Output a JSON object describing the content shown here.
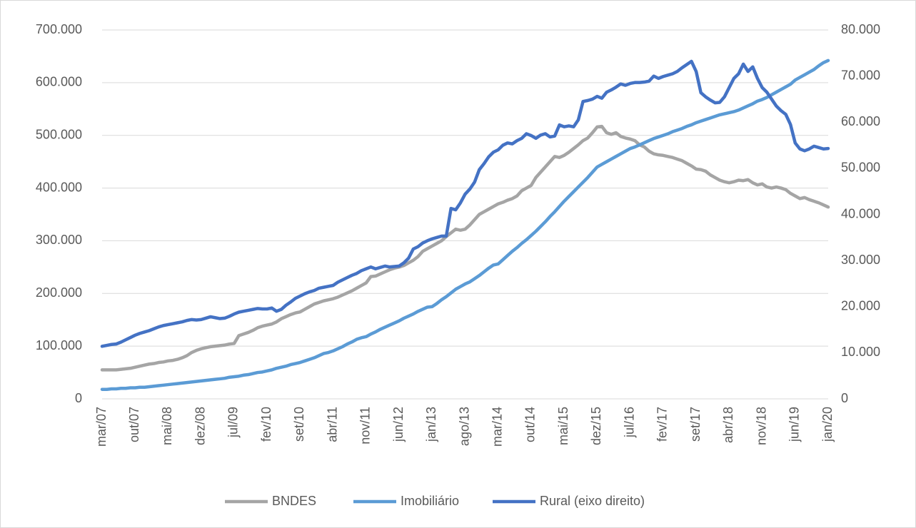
{
  "chart_data": {
    "type": "line",
    "categories": [
      "mar/07",
      null,
      null,
      null,
      null,
      null,
      null,
      "out/07",
      null,
      null,
      null,
      null,
      null,
      null,
      "mai/08",
      null,
      null,
      null,
      null,
      null,
      null,
      "dez/08",
      null,
      null,
      null,
      null,
      null,
      null,
      "jul/09",
      null,
      null,
      null,
      null,
      null,
      null,
      "fev/10",
      null,
      null,
      null,
      null,
      null,
      null,
      "set/10",
      null,
      null,
      null,
      null,
      null,
      null,
      "abr/11",
      null,
      null,
      null,
      null,
      null,
      null,
      "nov/11",
      null,
      null,
      null,
      null,
      null,
      null,
      "jun/12",
      null,
      null,
      null,
      null,
      null,
      null,
      "jan/13",
      null,
      null,
      null,
      null,
      null,
      null,
      "ago/13",
      null,
      null,
      null,
      null,
      null,
      null,
      "mar/14",
      null,
      null,
      null,
      null,
      null,
      null,
      "out/14",
      null,
      null,
      null,
      null,
      null,
      null,
      "mai/15",
      null,
      null,
      null,
      null,
      null,
      null,
      "dez/15",
      null,
      null,
      null,
      null,
      null,
      null,
      "jul/16",
      null,
      null,
      null,
      null,
      null,
      null,
      "fev/17",
      null,
      null,
      null,
      null,
      null,
      null,
      "set/17",
      null,
      null,
      null,
      null,
      null,
      null,
      "abr/18",
      null,
      null,
      null,
      null,
      null,
      null,
      "nov/18",
      null,
      null,
      null,
      null,
      null,
      null,
      "jun/19",
      null,
      null,
      null,
      null,
      null,
      null,
      "jan/20"
    ],
    "series": [
      {
        "name": "BNDES",
        "color": "#a5a5a5",
        "values": [
          55000,
          55000,
          55000,
          55000,
          56000,
          57000,
          58000,
          60000,
          62000,
          64000,
          66000,
          67000,
          69000,
          70000,
          72000,
          73000,
          75000,
          78000,
          82000,
          88000,
          92000,
          95000,
          97000,
          99000,
          100000,
          101000,
          102000,
          104000,
          105000,
          120000,
          123000,
          126000,
          130000,
          135000,
          138000,
          140000,
          142000,
          146000,
          152000,
          156000,
          160000,
          163000,
          165000,
          170000,
          175000,
          180000,
          183000,
          186000,
          188000,
          190000,
          193000,
          197000,
          201000,
          205000,
          210000,
          215000,
          220000,
          232000,
          233000,
          237000,
          241000,
          245000,
          248000,
          250000,
          253000,
          258000,
          263000,
          270000,
          280000,
          285000,
          290000,
          295000,
          300000,
          308000,
          315000,
          322000,
          320000,
          322000,
          330000,
          340000,
          350000,
          355000,
          360000,
          365000,
          370000,
          373000,
          377000,
          380000,
          385000,
          395000,
          400000,
          405000,
          420000,
          430000,
          440000,
          450000,
          460000,
          458000,
          462000,
          468000,
          475000,
          482000,
          490000,
          495000,
          505000,
          516000,
          517000,
          505000,
          502000,
          505000,
          498000,
          495000,
          493000,
          490000,
          482000,
          478000,
          470000,
          465000,
          463000,
          462000,
          460000,
          458000,
          455000,
          452000,
          447000,
          442000,
          436000,
          435000,
          432000,
          425000,
          420000,
          415000,
          412000,
          410000,
          412000,
          415000,
          414000,
          416000,
          410000,
          406000,
          408000,
          402000,
          400000,
          402000,
          400000,
          397000,
          390000,
          385000,
          380000,
          382000,
          378000,
          375000,
          372000,
          368000,
          364000
        ]
      },
      {
        "name": "Imobiliário",
        "color": "#5b9bd5",
        "values": [
          18000,
          18000,
          19000,
          19000,
          20000,
          20000,
          21000,
          21000,
          22000,
          22000,
          23000,
          24000,
          25000,
          26000,
          27000,
          28000,
          29000,
          30000,
          31000,
          32000,
          33000,
          34000,
          35000,
          36000,
          37000,
          38000,
          39000,
          41000,
          42000,
          43000,
          45000,
          46000,
          48000,
          50000,
          51000,
          53000,
          55000,
          58000,
          60000,
          62000,
          65000,
          67000,
          69000,
          72000,
          75000,
          78000,
          82000,
          86000,
          88000,
          91000,
          95000,
          99000,
          104000,
          108000,
          113000,
          116000,
          118000,
          123000,
          127000,
          132000,
          136000,
          140000,
          144000,
          148000,
          153000,
          157000,
          161000,
          166000,
          170000,
          174000,
          175000,
          181000,
          188000,
          194000,
          201000,
          208000,
          213000,
          218000,
          222000,
          228000,
          234000,
          241000,
          248000,
          254000,
          256000,
          264000,
          272000,
          280000,
          287000,
          295000,
          302000,
          310000,
          318000,
          327000,
          336000,
          346000,
          355000,
          365000,
          375000,
          384000,
          393000,
          402000,
          411000,
          420000,
          430000,
          440000,
          445000,
          450000,
          455000,
          460000,
          465000,
          470000,
          475000,
          478000,
          482000,
          486000,
          490000,
          494000,
          497000,
          500000,
          503000,
          507000,
          510000,
          513000,
          517000,
          520000,
          524000,
          527000,
          530000,
          533000,
          536000,
          539000,
          541000,
          543000,
          545000,
          548000,
          552000,
          556000,
          560000,
          565000,
          568000,
          572000,
          577000,
          582000,
          587000,
          592000,
          597000,
          605000,
          610000,
          615000,
          620000,
          625000,
          632000,
          638000,
          642000
        ]
      },
      {
        "name": "Rural (eixo direito)",
        "color": "#4472c4",
        "axis": "y2",
        "values": [
          11400,
          11600,
          11800,
          11900,
          12300,
          12800,
          13300,
          13800,
          14200,
          14500,
          14800,
          15200,
          15600,
          15900,
          16100,
          16300,
          16500,
          16700,
          17000,
          17200,
          17100,
          17200,
          17500,
          17800,
          17600,
          17400,
          17500,
          17900,
          18400,
          18800,
          19000,
          19200,
          19400,
          19600,
          19500,
          19500,
          19700,
          19000,
          19400,
          20300,
          21000,
          21800,
          22300,
          22800,
          23200,
          23500,
          24000,
          24200,
          24400,
          24600,
          25300,
          25800,
          26300,
          26800,
          27200,
          27800,
          28200,
          28600,
          28200,
          28500,
          28800,
          28600,
          28700,
          28800,
          29500,
          30500,
          32500,
          33000,
          33800,
          34300,
          34700,
          35000,
          35300,
          35300,
          41300,
          41000,
          42500,
          44400,
          45500,
          47000,
          49700,
          51000,
          52500,
          53500,
          54000,
          55000,
          55500,
          55300,
          56000,
          56500,
          57500,
          57100,
          56500,
          57200,
          57500,
          56800,
          57000,
          59400,
          59000,
          59200,
          59000,
          60500,
          64500,
          64700,
          65000,
          65600,
          65200,
          66500,
          67000,
          67600,
          68300,
          68000,
          68400,
          68600,
          68600,
          68700,
          68900,
          70000,
          69500,
          69900,
          70200,
          70500,
          71000,
          71800,
          72500,
          73200,
          71000,
          66400,
          65500,
          64800,
          64200,
          64300,
          65500,
          67500,
          69500,
          70500,
          72600,
          71000,
          72000,
          69500,
          67500,
          66500,
          65000,
          63500,
          62500,
          61700,
          59500,
          55500,
          54200,
          53800,
          54200,
          54800,
          54500,
          54200,
          54300
        ]
      }
    ],
    "ylim": [
      0,
      700000
    ],
    "yticks": [
      0,
      {
        "value": 100000,
        "label": "100.000"
      },
      {
        "value": 200000,
        "label": "200.000"
      },
      {
        "value": 300000,
        "label": "300.000"
      },
      {
        "value": 400000,
        "label": "400.000"
      },
      {
        "value": 500000,
        "label": "500.000"
      },
      {
        "value": 600000,
        "label": "600.000"
      },
      {
        "value": 700000,
        "label": "700.000"
      }
    ],
    "y2lim": [
      0,
      80000
    ],
    "y2ticks": [
      0,
      {
        "value": 10000,
        "label": "10.000"
      },
      {
        "value": 20000,
        "label": "20.000"
      },
      {
        "value": 30000,
        "label": "30.000"
      },
      {
        "value": 40000,
        "label": "40.000"
      },
      {
        "value": 50000,
        "label": "50.000"
      },
      {
        "value": 60000,
        "label": "60.000"
      },
      {
        "value": 70000,
        "label": "70.000"
      },
      {
        "value": 80000,
        "label": "80.000"
      }
    ],
    "grid": true,
    "legend": "bottom"
  }
}
